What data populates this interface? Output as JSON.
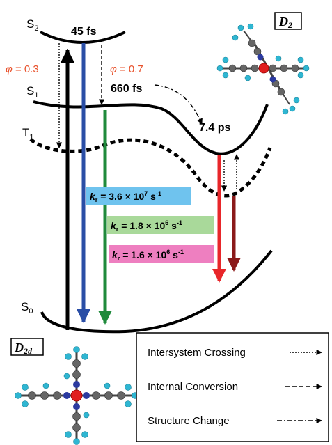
{
  "states": {
    "s2": {
      "main": "S",
      "sub": "2"
    },
    "s1": {
      "main": "S",
      "sub": "1"
    },
    "t1": {
      "main": "T",
      "sub": "1"
    },
    "s0": {
      "main": "S",
      "sub": "0"
    }
  },
  "times": {
    "t45": "45 fs",
    "t660": "660 fs",
    "t74": "7.4 ps"
  },
  "phi": {
    "symbol": "φ",
    "left": " = 0.3",
    "right": " = 0.7"
  },
  "rates": [
    {
      "k": "k",
      "sub": "r",
      "eq": " =  3.6 × 10",
      "exp": "7",
      "unit": " s",
      "unitexp": "-1"
    },
    {
      "k": "k",
      "sub": "r",
      "eq": " = 1.8  × 10",
      "exp": "6",
      "unit": " s",
      "unitexp": "-1"
    },
    {
      "k": "k",
      "sub": "r",
      "eq": " = 1.6 × 10",
      "exp": "6",
      "unit": " s",
      "unitexp": "-1"
    }
  ],
  "symmetry": {
    "d2": {
      "main": "D",
      "sub": "2"
    },
    "d2d": {
      "main": "D",
      "sub": "2d"
    }
  },
  "legend": {
    "isc": "Intersystem Crossing",
    "ic": "Internal Conversion",
    "sc": "Structure Change"
  },
  "colors": {
    "blue": "#2a4ea6",
    "green": "#1f8a3b",
    "red": "#e8262a",
    "darkred": "#8b1a1a",
    "phi": "#e8502a",
    "rate1_bg": "#6fc3ee",
    "rate2_bg": "#a9d99a",
    "rate3_bg": "#ee7fc0",
    "carbon": "#666666",
    "hydrogen": "#2fb6d2",
    "nitrogen": "#2b3aa0",
    "metal": "#e01e1e"
  }
}
